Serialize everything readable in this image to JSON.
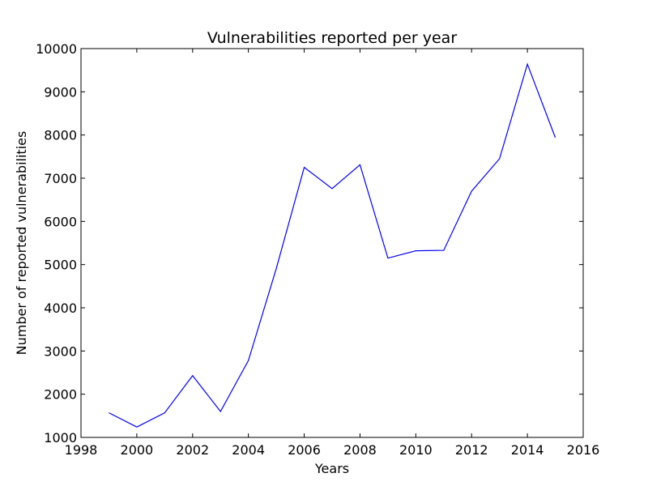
{
  "chart_data": {
    "type": "line",
    "title": "Vulnerabilities reported per year",
    "xlabel": "Years",
    "ylabel": "Number of reported vulnerabilities",
    "xlim": [
      1998,
      2016
    ],
    "ylim": [
      1000,
      10000
    ],
    "xticks": [
      "1998",
      "2000",
      "2002",
      "2004",
      "2006",
      "2008",
      "2010",
      "2012",
      "2014",
      "2016"
    ],
    "yticks": [
      "1000",
      "2000",
      "3000",
      "4000",
      "5000",
      "6000",
      "7000",
      "8000",
      "9000",
      "10000"
    ],
    "grid": false,
    "legend": "none",
    "series": [
      {
        "color": "#0000ff",
        "x": [
          1999,
          2000,
          2001,
          2002,
          2003,
          2004,
          2005,
          2006,
          2007,
          2008,
          2009,
          2010,
          2011,
          2012,
          2013,
          2014,
          2015
        ],
        "y": [
          1570,
          1240,
          1570,
          2430,
          1600,
          2780,
          4910,
          7250,
          6760,
          7310,
          5150,
          5320,
          5330,
          6700,
          7450,
          9640,
          7940
        ]
      }
    ]
  }
}
